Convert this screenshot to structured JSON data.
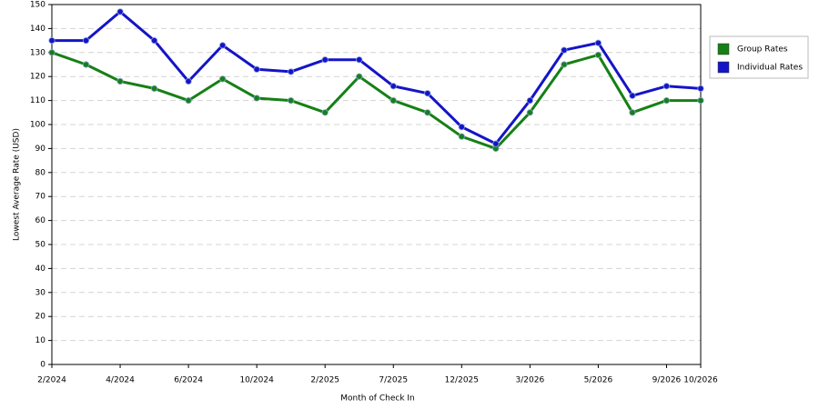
{
  "chart_data": {
    "type": "line",
    "x_label": "Month of Check In",
    "y_label": "Lowest Average Rate (USD)",
    "categories": [
      "2/2024",
      null,
      "4/2024",
      null,
      "6/2024",
      null,
      "10/2024",
      null,
      "2/2025",
      null,
      "7/2025",
      null,
      "12/2025",
      null,
      "3/2026",
      null,
      "5/2026",
      null,
      "9/2026",
      "10/2026"
    ],
    "series": [
      {
        "name": "Group Rates",
        "color": "#168016",
        "values": [
          130,
          125,
          118,
          115,
          110,
          119,
          111,
          110,
          105,
          120,
          110,
          105,
          95,
          90,
          105,
          125,
          129,
          105,
          110,
          110
        ]
      },
      {
        "name": "Individual Rates",
        "color": "#1414c8",
        "values": [
          135,
          135,
          147,
          135,
          118,
          133,
          123,
          122,
          127,
          127,
          116,
          113,
          99,
          92,
          110,
          131,
          134,
          112,
          116,
          115
        ]
      }
    ],
    "ylim": [
      0,
      150
    ],
    "yticks": [
      0,
      10,
      20,
      30,
      40,
      50,
      60,
      70,
      80,
      90,
      100,
      110,
      120,
      130,
      140,
      150
    ],
    "grid": true,
    "legend": "right"
  }
}
